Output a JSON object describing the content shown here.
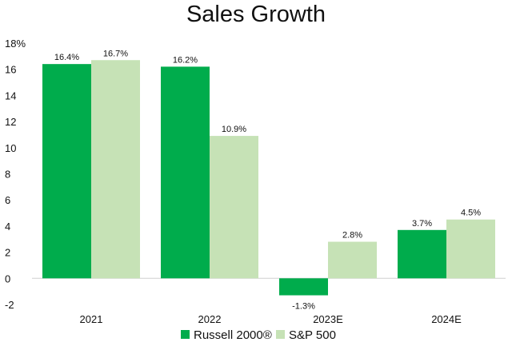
{
  "chart_data": {
    "type": "bar",
    "title": "Sales Growth",
    "categories": [
      "2021",
      "2022",
      "2023E",
      "2024E"
    ],
    "series": [
      {
        "name": "Russell 2000®",
        "color": "#00ac4c",
        "values": [
          16.4,
          16.2,
          -1.3,
          3.7
        ],
        "labels": [
          "16.4%",
          "16.2%",
          "-1.3%",
          "3.7%"
        ]
      },
      {
        "name": "S&P 500",
        "color": "#c6e2b6",
        "values": [
          16.7,
          10.9,
          2.8,
          4.5
        ],
        "labels": [
          "16.7%",
          "10.9%",
          "2.8%",
          "4.5%"
        ]
      }
    ],
    "ylim": [
      -2,
      18
    ],
    "yticks": [
      -2,
      0,
      2,
      4,
      6,
      8,
      10,
      12,
      14,
      16,
      18
    ],
    "ytick_labels": [
      "-2",
      "0",
      "2",
      "4",
      "6",
      "8",
      "10",
      "12",
      "14",
      "16",
      "18%"
    ],
    "grid": false,
    "legend_position": "bottom",
    "xlabel": "",
    "ylabel": ""
  }
}
